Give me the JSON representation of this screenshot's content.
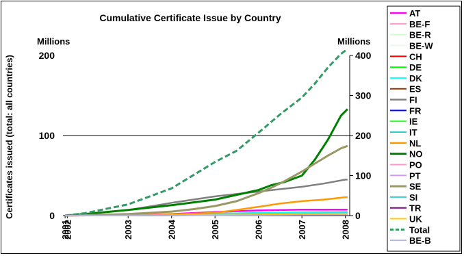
{
  "chart_data": {
    "type": "line",
    "title": "Cumulative Certificate Issue by Country",
    "left_unit": "Millions",
    "right_unit": "Millions",
    "ylabel": "Certificates issued (total: all countries)",
    "xlabel": "",
    "ylim_left": [
      0,
      200
    ],
    "ylim_right": [
      0,
      400
    ],
    "yticks_left": [
      0,
      100,
      200
    ],
    "yticks_right": [
      0,
      100,
      200,
      300,
      400
    ],
    "x_tick_labels": [
      "2001",
      "2002",
      "2003",
      "2004",
      "2005",
      "2006",
      "2007",
      "2008"
    ],
    "x_tick_positions": [
      2001.55,
      2001.6,
      2003,
      2004,
      2005,
      2006,
      2007,
      2008
    ],
    "xlim": [
      2001.5,
      2008.1
    ],
    "grid": "horizontal at 100 only",
    "legend_position": "right",
    "series": [
      {
        "name": "AT",
        "color": "#ff00ff",
        "width": 2.5,
        "dash": false,
        "x": [
          2001.55,
          2003,
          2004,
          2005,
          2006,
          2007,
          2008.05
        ],
        "y": [
          0,
          0.5,
          2,
          4.5,
          6.5,
          7.5,
          7.5
        ]
      },
      {
        "name": "BE-F",
        "color": "#ff99cc",
        "width": 2,
        "dash": false,
        "x": [
          2001.55,
          2003,
          2004,
          2005,
          2006,
          2007,
          2008.05
        ],
        "y": [
          0,
          0.3,
          1,
          2.5,
          3.5,
          4.5,
          5
        ]
      },
      {
        "name": "BE-R",
        "color": "#ccffcc",
        "width": 2,
        "dash": false,
        "x": [
          2001.55,
          2003,
          2004,
          2005,
          2006,
          2007,
          2008.05
        ],
        "y": [
          0,
          0.2,
          0.5,
          1,
          1.5,
          2,
          2.5
        ]
      },
      {
        "name": "BE-W",
        "color": "#e8f8e8",
        "width": 2,
        "dash": false,
        "x": [
          2001.55,
          2003,
          2004,
          2005,
          2006,
          2007,
          2008.05
        ],
        "y": [
          0,
          0.1,
          0.3,
          0.6,
          1,
          1.3,
          1.6
        ]
      },
      {
        "name": "CH",
        "color": "#ff0000",
        "width": 2,
        "dash": false,
        "x": [
          2001.55,
          2003,
          2004,
          2005,
          2006,
          2007,
          2008.05
        ],
        "y": [
          0,
          0.2,
          0.5,
          1,
          1.5,
          2,
          2.5
        ]
      },
      {
        "name": "DE",
        "color": "#00ff00",
        "width": 2,
        "dash": false,
        "x": [
          2001.55,
          2003,
          2004,
          2005,
          2006,
          2007,
          2008.05
        ],
        "y": [
          0,
          0.2,
          0.5,
          1,
          1.5,
          2,
          2.5
        ]
      },
      {
        "name": "DK",
        "color": "#00ffff",
        "width": 2,
        "dash": false,
        "x": [
          2001.55,
          2003,
          2004,
          2005,
          2006,
          2007,
          2008.05
        ],
        "y": [
          0,
          0.5,
          1.5,
          2.5,
          3.5,
          4,
          4.5
        ]
      },
      {
        "name": "ES",
        "color": "#993300",
        "width": 2,
        "dash": false,
        "x": [
          2001.55,
          2003,
          2004,
          2005,
          2006,
          2007,
          2008.05
        ],
        "y": [
          0,
          0.2,
          0.5,
          1,
          1.5,
          2,
          2.5
        ]
      },
      {
        "name": "FI",
        "color": "#808080",
        "width": 2.5,
        "dash": false,
        "x": [
          2001.55,
          2002,
          2003,
          2004,
          2005,
          2006,
          2007,
          2007.5,
          2008,
          2008.05
        ],
        "y": [
          0,
          2,
          7,
          16,
          24,
          30,
          36,
          40,
          45,
          45
        ]
      },
      {
        "name": "FR",
        "color": "#0000ff",
        "width": 2,
        "dash": false,
        "x": [
          2001.55,
          2003,
          2004,
          2005,
          2006,
          2007,
          2008.05
        ],
        "y": [
          0,
          0.2,
          0.5,
          1,
          1.5,
          2,
          2.5
        ]
      },
      {
        "name": "IE",
        "color": "#33ff33",
        "width": 2,
        "dash": false,
        "x": [
          2001.55,
          2003,
          2004,
          2005,
          2006,
          2007,
          2008.05
        ],
        "y": [
          0,
          0.2,
          0.5,
          1,
          1.5,
          2,
          2.5
        ]
      },
      {
        "name": "IT",
        "color": "#33cccc",
        "width": 2,
        "dash": false,
        "x": [
          2001.55,
          2003,
          2004,
          2005,
          2006,
          2007,
          2008.05
        ],
        "y": [
          0,
          0.3,
          1,
          1.5,
          2,
          2.5,
          3
        ]
      },
      {
        "name": "NL",
        "color": "#ff9900",
        "width": 2.5,
        "dash": false,
        "x": [
          2001.55,
          2003,
          2004,
          2005,
          2005.5,
          2006,
          2006.5,
          2007,
          2007.5,
          2008,
          2008.05
        ],
        "y": [
          0,
          0.5,
          1.5,
          3.5,
          7,
          11,
          15,
          18,
          20,
          23,
          23
        ]
      },
      {
        "name": "NO",
        "color": "#008000",
        "width": 3,
        "dash": false,
        "x": [
          2001.55,
          2002,
          2003,
          2004,
          2005,
          2005.5,
          2006,
          2006.3,
          2006.6,
          2007,
          2007.3,
          2007.6,
          2007.9,
          2008.05
        ],
        "y": [
          0,
          2,
          7,
          13,
          20,
          26,
          32,
          38,
          42,
          50,
          70,
          95,
          125,
          133
        ]
      },
      {
        "name": "PO",
        "color": "#ff99cc",
        "width": 2,
        "dash": false,
        "x": [
          2001.55,
          2003,
          2004,
          2005,
          2006,
          2007,
          2008.05
        ],
        "y": [
          0,
          0.2,
          0.5,
          1,
          1.5,
          2,
          2.5
        ]
      },
      {
        "name": "PT",
        "color": "#cc99ff",
        "width": 2,
        "dash": false,
        "x": [
          2001.55,
          2003,
          2004,
          2005,
          2006,
          2007,
          2008.05
        ],
        "y": [
          0,
          0.2,
          0.5,
          1,
          1.5,
          2,
          2.5
        ]
      },
      {
        "name": "SE",
        "color": "#999966",
        "width": 3,
        "dash": false,
        "x": [
          2001.55,
          2003,
          2004,
          2004.5,
          2005,
          2005.5,
          2006,
          2006.3,
          2006.6,
          2007,
          2007.3,
          2007.6,
          2007.9,
          2008.05
        ],
        "y": [
          0,
          2,
          5,
          8,
          12,
          18,
          28,
          35,
          43,
          55,
          65,
          75,
          84,
          87
        ]
      },
      {
        "name": "SI",
        "color": "#33cccc",
        "width": 2,
        "dash": false,
        "x": [
          2001.55,
          2003,
          2004,
          2005,
          2006,
          2007,
          2008.05
        ],
        "y": [
          0,
          0.2,
          0.5,
          1,
          1.5,
          2,
          2.5
        ]
      },
      {
        "name": "TR",
        "color": "#800080",
        "width": 2,
        "dash": false,
        "x": [
          2001.55,
          2003,
          2004,
          2005,
          2006,
          2007,
          2008.05
        ],
        "y": [
          0,
          0.1,
          0.2,
          0.5,
          0.8,
          1,
          1.2
        ]
      },
      {
        "name": "UK",
        "color": "#ffcc00",
        "width": 2,
        "dash": false,
        "x": [
          2001.55,
          2003,
          2004,
          2005,
          2006,
          2007,
          2008.05
        ],
        "y": [
          0,
          0.2,
          0.5,
          1,
          1.5,
          2,
          2.5
        ]
      },
      {
        "name": "Total",
        "color": "#339966",
        "width": 3,
        "dash": true,
        "axis": "right",
        "x": [
          2001.55,
          2002,
          2003,
          2004,
          2005,
          2005.5,
          2006,
          2006.5,
          2007,
          2007.3,
          2007.6,
          2007.9,
          2008.05
        ],
        "y": [
          0,
          6,
          28,
          68,
          134,
          162,
          207,
          253,
          295,
          330,
          370,
          404,
          416
        ]
      },
      {
        "name": "BE-B",
        "color": "#b7b7d9",
        "width": 2,
        "dash": false,
        "x": [
          2001.55,
          2003,
          2004,
          2005,
          2006,
          2007,
          2008.05
        ],
        "y": [
          0,
          0.1,
          0.3,
          0.5,
          0.8,
          1,
          1.2
        ]
      }
    ]
  }
}
